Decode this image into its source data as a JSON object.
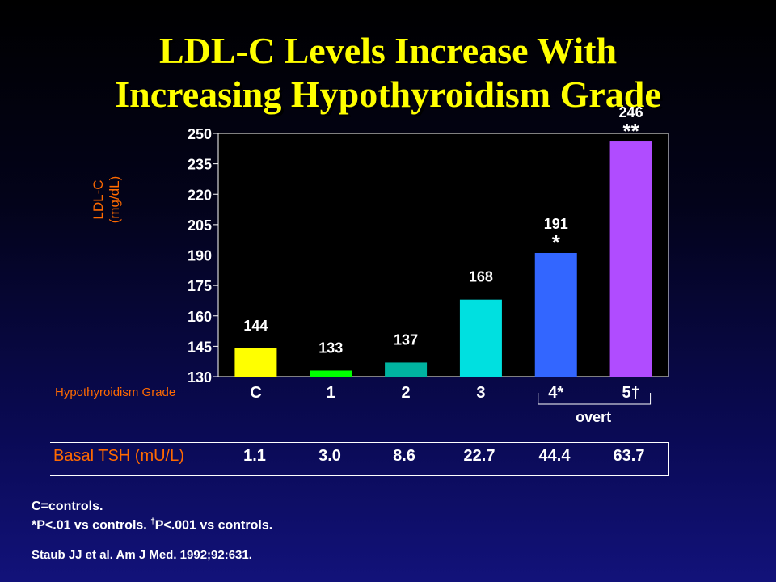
{
  "title": {
    "line1": "LDL-C Levels Increase With",
    "line2": "Increasing Hypothyroidism Grade"
  },
  "colors": {
    "background": "#0a0a55",
    "title": "#ffff00",
    "label_orange": "#ff6a00",
    "text": "#ffffff"
  },
  "chart_data": {
    "type": "bar",
    "title": "",
    "ylabel_line1": "LDL-C",
    "ylabel_line2": "(mg/dL)",
    "xlabel": "Hypothyroidism Grade",
    "ylim": [
      130,
      250
    ],
    "yticks": [
      130,
      145,
      160,
      175,
      190,
      205,
      220,
      235,
      250
    ],
    "grid": false,
    "categories": [
      "C",
      "1",
      "2",
      "3",
      "4*",
      "5†"
    ],
    "values": [
      144,
      133,
      137,
      168,
      191,
      246
    ],
    "data_labels": [
      "144",
      "133",
      "137",
      "168",
      "191",
      "246"
    ],
    "significance": [
      "",
      "",
      "",
      "",
      "*",
      "**"
    ],
    "bar_colors": [
      "#ffff00",
      "#00ff00",
      "#00b3a0",
      "#00e0e0",
      "#3366ff",
      "#b04cff"
    ],
    "bracket_label": "overt"
  },
  "tsh": {
    "label": "Basal TSH (mU/L)",
    "values": [
      "1.1",
      "3.0",
      "8.6",
      "22.7",
      "44.4",
      "63.7"
    ]
  },
  "footnotes": {
    "line1": "C=controls.",
    "line2_a": "*P<.01 vs controls. ",
    "line2_dagger": "†",
    "line2_b": "P<.001 vs controls.",
    "citation": "Staub JJ et al. Am J Med. 1992;92:631."
  }
}
